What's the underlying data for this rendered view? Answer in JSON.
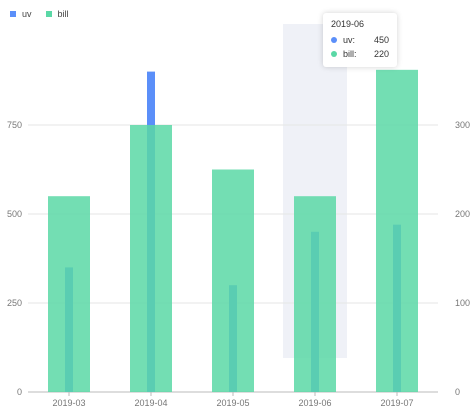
{
  "legend": [
    {
      "name": "uv",
      "color": "#5B8FF9"
    },
    {
      "name": "bill",
      "color": "#5AD8A6"
    }
  ],
  "tooltip": {
    "title": "2019-06",
    "rows": [
      {
        "name": "uv:",
        "value": "450",
        "color": "#5B8FF9"
      },
      {
        "name": "bill:",
        "value": "220",
        "color": "#5AD8A6"
      }
    ]
  },
  "chart_data": {
    "type": "bar",
    "categories": [
      "2019-03",
      "2019-04",
      "2019-05",
      "2019-06",
      "2019-07"
    ],
    "series": [
      {
        "name": "uv",
        "axis": "left",
        "color": "#5B8FF9",
        "values": [
          350,
          900,
          300,
          450,
          470
        ]
      },
      {
        "name": "bill",
        "axis": "right",
        "color": "#5AD8A6",
        "values": [
          220,
          300,
          250,
          220,
          362
        ]
      }
    ],
    "y_left": {
      "min": 0,
      "max": 1000,
      "ticks": [
        0,
        250,
        500,
        750
      ]
    },
    "y_right": {
      "min": 0,
      "max": 400,
      "ticks": [
        0,
        100,
        200,
        300
      ]
    },
    "highlighted_category": "2019-06",
    "legend_position": "top-left",
    "grid": true
  }
}
